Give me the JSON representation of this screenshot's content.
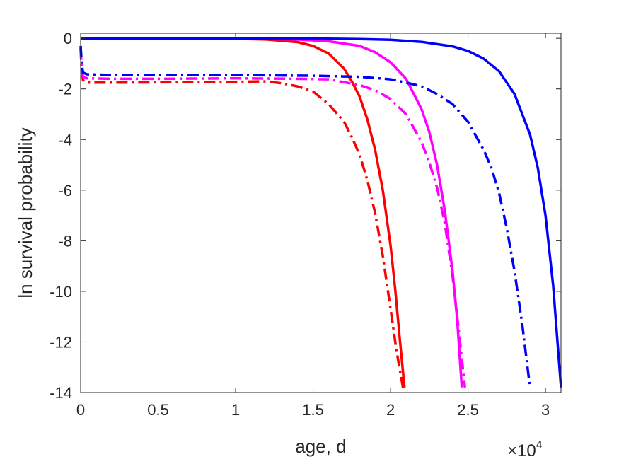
{
  "chart_data": {
    "type": "line",
    "title": "",
    "xlabel": "age, d",
    "ylabel": "ln survival probability",
    "x_exponent_label": {
      "base": "×10",
      "power": "4"
    },
    "xlim": [
      0,
      31000
    ],
    "ylim": [
      -14,
      0.2
    ],
    "x_ticks": [
      0,
      5000,
      10000,
      15000,
      20000,
      25000,
      30000
    ],
    "x_tick_labels": [
      "0",
      "0.5",
      "1",
      "1.5",
      "2",
      "2.5",
      "3"
    ],
    "y_ticks": [
      0,
      -2,
      -4,
      -6,
      -8,
      -10,
      -12,
      -14
    ],
    "y_tick_labels": [
      "0",
      "-2",
      "-4",
      "-6",
      "-8",
      "-10",
      "-12",
      "-14"
    ],
    "grid": false,
    "series": [
      {
        "color": "#ff0000",
        "style": "solid",
        "x": [
          0,
          5000,
          10000,
          12000,
          14000,
          15000,
          16000,
          17000,
          17500,
          18000,
          18500,
          19000,
          19500,
          20000,
          20300,
          20600,
          20900
        ],
        "y": [
          0,
          0,
          -0.02,
          -0.05,
          -0.15,
          -0.3,
          -0.6,
          -1.2,
          -1.7,
          -2.3,
          -3.2,
          -4.4,
          -6.0,
          -8.2,
          -9.9,
          -11.9,
          -13.8
        ]
      },
      {
        "color": "#ff0000",
        "style": "dashdot",
        "x": [
          0,
          60,
          150,
          400,
          2000,
          5000,
          10000,
          12000,
          13000,
          14000,
          15000,
          16000,
          17000,
          17500,
          18000,
          18500,
          19000,
          19500,
          20000,
          20400,
          20800
        ],
        "y": [
          -0.4,
          -1.2,
          -1.65,
          -1.75,
          -1.75,
          -1.74,
          -1.72,
          -1.7,
          -1.78,
          -1.9,
          -2.1,
          -2.6,
          -3.3,
          -3.9,
          -4.6,
          -5.6,
          -6.9,
          -8.6,
          -10.7,
          -12.4,
          -13.8
        ]
      },
      {
        "color": "#ff00ff",
        "style": "solid",
        "x": [
          0,
          5000,
          10000,
          14000,
          16000,
          18000,
          19000,
          20000,
          21000,
          22000,
          22500,
          23000,
          23500,
          24000,
          24300,
          24600
        ],
        "y": [
          0,
          0,
          -0.01,
          -0.05,
          -0.12,
          -0.3,
          -0.55,
          -0.95,
          -1.6,
          -2.8,
          -3.7,
          -5.0,
          -6.8,
          -9.2,
          -11.1,
          -13.8
        ]
      },
      {
        "color": "#ff00ff",
        "style": "dashdot",
        "x": [
          0,
          60,
          150,
          400,
          2000,
          5000,
          10000,
          14000,
          16000,
          18000,
          19000,
          20000,
          21000,
          22000,
          22500,
          23000,
          23500,
          24000,
          24400,
          24800
        ],
        "y": [
          -0.4,
          -1.1,
          -1.5,
          -1.58,
          -1.6,
          -1.6,
          -1.58,
          -1.6,
          -1.62,
          -1.85,
          -2.05,
          -2.4,
          -3.0,
          -4.1,
          -4.9,
          -5.9,
          -7.3,
          -9.4,
          -11.5,
          -13.8
        ]
      },
      {
        "color": "#0000ff",
        "style": "solid",
        "x": [
          0,
          5000,
          10000,
          15000,
          18000,
          20000,
          22000,
          24000,
          25000,
          26000,
          27000,
          28000,
          29000,
          29500,
          30000,
          30500,
          31000
        ],
        "y": [
          0,
          0,
          0,
          -0.01,
          -0.03,
          -0.06,
          -0.14,
          -0.32,
          -0.5,
          -0.8,
          -1.3,
          -2.2,
          -3.8,
          -5.1,
          -7.0,
          -9.8,
          -13.8
        ]
      },
      {
        "color": "#0000ff",
        "style": "dashdot",
        "x": [
          0,
          60,
          150,
          400,
          2000,
          5000,
          10000,
          15000,
          18000,
          20000,
          21000,
          22000,
          23000,
          24000,
          25000,
          26000,
          26500,
          27000,
          27500,
          28000,
          28500,
          29000
        ],
        "y": [
          -0.3,
          -0.9,
          -1.35,
          -1.42,
          -1.45,
          -1.45,
          -1.45,
          -1.48,
          -1.52,
          -1.62,
          -1.75,
          -1.9,
          -2.2,
          -2.6,
          -3.3,
          -4.4,
          -5.1,
          -6.1,
          -7.5,
          -9.2,
          -11.3,
          -13.8
        ]
      }
    ]
  }
}
